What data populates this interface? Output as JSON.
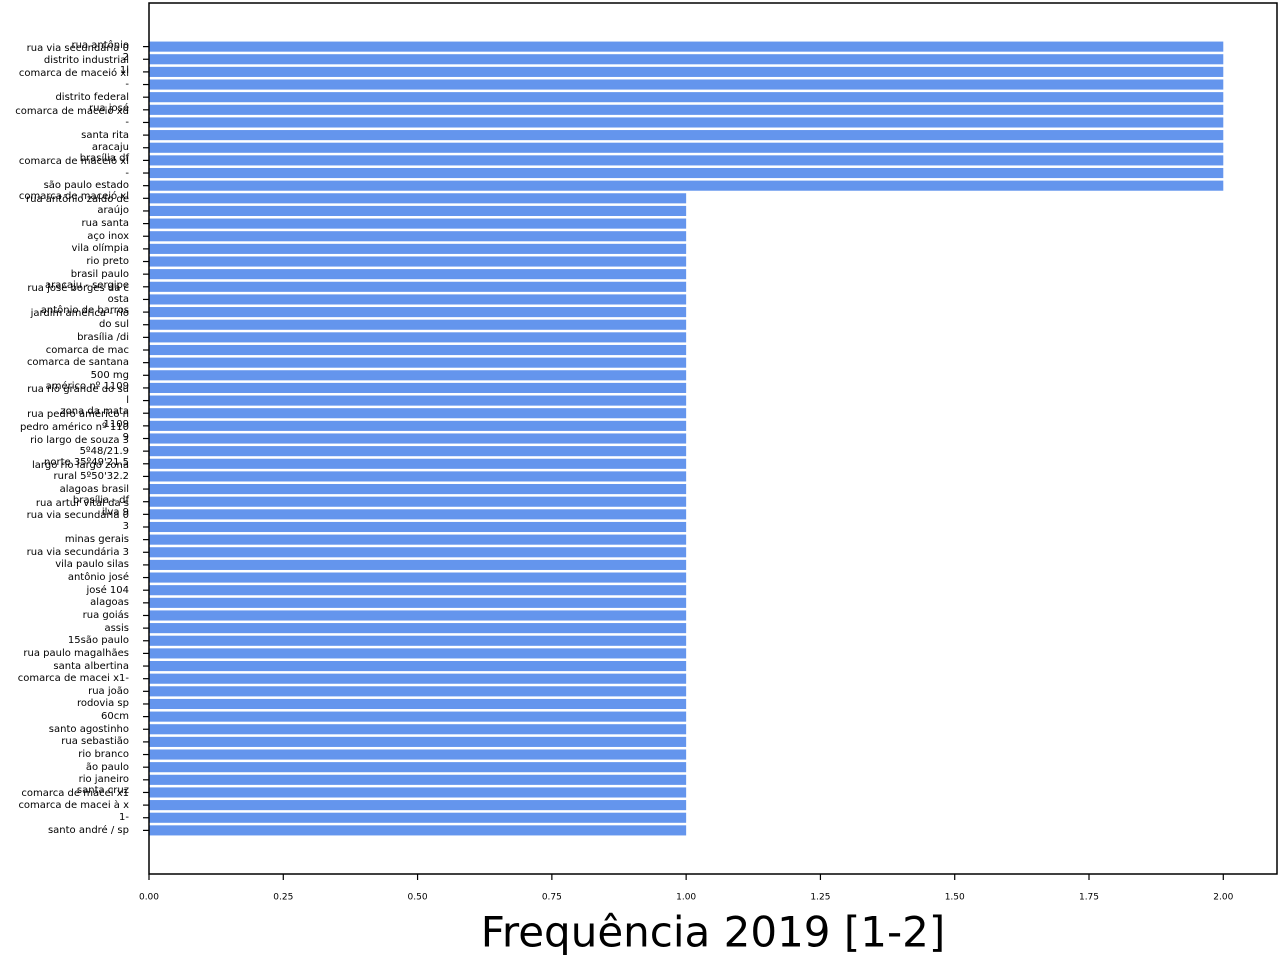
{
  "chart_data": {
    "type": "barh",
    "xlabel": "Frequência 2019 [1-2]",
    "color": "#6495ed",
    "categories": [
      "rua antônio\nrua via secundária 0",
      "2\ndistrito industrial",
      "1l\ncomarca de maceió xl",
      "-",
      "distrito federal",
      "rua josé\ncomarca de maceió xd",
      "-",
      "santa rita",
      "aracaju",
      "brasília df\ncomarca de maceió xl",
      "-",
      "são paulo estado",
      "comarca de maceió xl\nrua antônio zaldo de",
      "araújo",
      "rua santa",
      "aço inox",
      "vila olímpia",
      "rio preto",
      "brasil paulo",
      "aracaju - sergipe\nrua josé borges da c",
      "osta",
      "antônio de barros\njardim américa - rio",
      "do sul",
      "brasília /di",
      "comarca de mac",
      "comarca de santana",
      "500 mg",
      "américo nº 1109\nrua rio grande do su",
      "l",
      "zona da mata\nrua pedro américo n",
      "1109\npedro américo nº 110",
      "9\nrio largo de souza 3",
      "5º48/21.9",
      "norte 35º49'21.5\nlargo rio largo zona",
      "rural 5º50'32.2",
      "alagoas brasil",
      "brasília - df\nrua artur vital da s",
      "ilva 9\nrua via secundária 0",
      "3",
      "minas gerais",
      "rua via secundária 3",
      "vila paulo silas",
      "antônio josé",
      "josé 104",
      "alagoas",
      "rua goiás",
      "assis",
      "15são paulo",
      "rua paulo magalhães",
      "santa albertina",
      "comarca de macei x1-",
      "rua joão",
      "rodovia sp",
      "60cm",
      "santo agostinho",
      "rua sebastião",
      "rio branco",
      "ão paulo",
      "rio janeiro",
      "santa cruz\ncomarca de macei x1",
      "comarca de macei à x",
      "1-",
      "santo andré / sp"
    ],
    "values": [
      2,
      2,
      2,
      2,
      2,
      2,
      2,
      2,
      2,
      2,
      2,
      2,
      1,
      1,
      1,
      1,
      1,
      1,
      1,
      1,
      1,
      1,
      1,
      1,
      1,
      1,
      1,
      1,
      1,
      1,
      1,
      1,
      1,
      1,
      1,
      1,
      1,
      1,
      1,
      1,
      1,
      1,
      1,
      1,
      1,
      1,
      1,
      1,
      1,
      1,
      1,
      1,
      1,
      1,
      1,
      1,
      1,
      1,
      1,
      1,
      1,
      1,
      1
    ],
    "xlim": [
      0,
      2.1
    ],
    "xticks": [
      {
        "value": 0,
        "label": "0.00"
      },
      {
        "value": 0.25,
        "label": "0.25"
      },
      {
        "value": 0.5,
        "label": "0.50"
      },
      {
        "value": 0.75,
        "label": "0.75"
      },
      {
        "value": 1,
        "label": "1.00"
      },
      {
        "value": 1.25,
        "label": "1.25"
      },
      {
        "value": 1.5,
        "label": "1.50"
      },
      {
        "value": 1.75,
        "label": "1.75"
      },
      {
        "value": 2,
        "label": "2.00"
      }
    ]
  }
}
